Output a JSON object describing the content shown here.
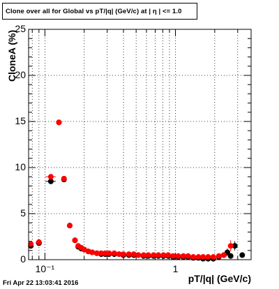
{
  "title": "Clone  over all for Global vs pT/|q| (GeV/c) at |  η | <= 1.0",
  "datestamp": "Fri Apr 22 13:03:41 2016",
  "chart_data": {
    "type": "scatter",
    "title": "Clone  over all for Global vs pT/|q| (GeV/c) at |  η | <= 1.0",
    "xlabel": "pT/|q| (GeV/c)",
    "ylabel": "CloneA (%)",
    "xscale": "log",
    "xlim": [
      0.075,
      3.8
    ],
    "ylim": [
      0,
      25
    ],
    "grid": true,
    "yticks": [
      {
        "value": 0,
        "label": "0"
      },
      {
        "value": 5,
        "label": "5"
      },
      {
        "value": 10,
        "label": "10"
      },
      {
        "value": 15,
        "label": "15"
      },
      {
        "value": 20,
        "label": "20"
      },
      {
        "value": 25,
        "label": "25"
      }
    ],
    "xticks": [
      {
        "value": 0.1,
        "label": "10⁻¹"
      },
      {
        "value": 1,
        "label": "1"
      }
    ],
    "series": [
      {
        "color": "#000000",
        "points": [
          [
            0.078,
            1.5,
            0.003,
            0.3
          ],
          [
            0.09,
            1.8,
            0.005,
            0.2
          ],
          [
            0.111,
            8.5,
            0.01,
            0.3
          ],
          [
            0.128,
            14.9,
            0.005,
            0.3
          ],
          [
            0.14,
            8.7,
            0.004,
            0.2
          ],
          [
            0.155,
            3.7,
            0.004,
            0.2
          ],
          [
            0.17,
            2.1,
            0.005,
            0.2
          ],
          [
            0.18,
            1.4,
            0.005,
            0.1
          ],
          [
            0.19,
            1.2,
            0.005,
            0.1
          ],
          [
            0.2,
            1.1,
            0.005,
            0.1
          ],
          [
            0.215,
            0.9,
            0.005,
            0.1
          ],
          [
            0.23,
            0.8,
            0.005,
            0.1
          ],
          [
            0.25,
            0.7,
            0.01,
            0.1
          ],
          [
            0.27,
            0.6,
            0.01,
            0.1
          ],
          [
            0.29,
            0.6,
            0.01,
            0.1
          ],
          [
            0.31,
            0.6,
            0.01,
            0.1
          ],
          [
            0.34,
            0.6,
            0.01,
            0.1
          ],
          [
            0.37,
            0.6,
            0.01,
            0.1
          ],
          [
            0.4,
            0.5,
            0.01,
            0.1
          ],
          [
            0.44,
            0.5,
            0.01,
            0.1
          ],
          [
            0.48,
            0.5,
            0.01,
            0.1
          ],
          [
            0.52,
            0.5,
            0.01,
            0.1
          ],
          [
            0.57,
            0.4,
            0.01,
            0.1
          ],
          [
            0.62,
            0.4,
            0.01,
            0.1
          ],
          [
            0.68,
            0.4,
            0.01,
            0.1
          ],
          [
            0.74,
            0.4,
            0.01,
            0.1
          ],
          [
            0.81,
            0.4,
            0.01,
            0.1
          ],
          [
            0.88,
            0.4,
            0.01,
            0.1
          ],
          [
            0.96,
            0.3,
            0.01,
            0.1
          ],
          [
            1.05,
            0.3,
            0.02,
            0.1
          ],
          [
            1.15,
            0.3,
            0.02,
            0.1
          ],
          [
            1.25,
            0.3,
            0.02,
            0.1
          ],
          [
            1.37,
            0.2,
            0.02,
            0.1
          ],
          [
            1.5,
            0.2,
            0.02,
            0.1
          ],
          [
            1.63,
            0.1,
            0.02,
            0.1
          ],
          [
            1.78,
            0.1,
            0.02,
            0.1
          ],
          [
            1.95,
            0.1,
            0.02,
            0.1
          ],
          [
            2.15,
            0.3,
            0.03,
            0.2
          ],
          [
            2.35,
            0.5,
            0.03,
            0.3
          ],
          [
            2.5,
            0.8,
            0.03,
            0.4
          ],
          [
            2.65,
            0.4,
            0.03,
            0.3
          ],
          [
            2.85,
            1.5,
            0.03,
            0.5
          ],
          [
            3.25,
            0.5,
            0.05,
            0.3
          ]
        ]
      },
      {
        "color": "#ff0000",
        "points": [
          [
            0.078,
            1.7,
            0.003,
            0.3
          ],
          [
            0.09,
            1.9,
            0.005,
            0.2
          ],
          [
            0.111,
            9.0,
            0.01,
            0.3
          ],
          [
            0.128,
            14.9,
            0.005,
            0.3
          ],
          [
            0.14,
            8.8,
            0.004,
            0.2
          ],
          [
            0.155,
            3.7,
            0.004,
            0.2
          ],
          [
            0.17,
            2.1,
            0.005,
            0.2
          ],
          [
            0.18,
            1.5,
            0.005,
            0.1
          ],
          [
            0.19,
            1.3,
            0.005,
            0.1
          ],
          [
            0.2,
            1.1,
            0.005,
            0.1
          ],
          [
            0.215,
            0.9,
            0.005,
            0.1
          ],
          [
            0.23,
            0.8,
            0.005,
            0.1
          ],
          [
            0.25,
            0.7,
            0.01,
            0.1
          ],
          [
            0.27,
            0.7,
            0.01,
            0.1
          ],
          [
            0.29,
            0.7,
            0.01,
            0.1
          ],
          [
            0.31,
            0.7,
            0.01,
            0.1
          ],
          [
            0.34,
            0.7,
            0.01,
            0.1
          ],
          [
            0.37,
            0.6,
            0.01,
            0.1
          ],
          [
            0.4,
            0.6,
            0.01,
            0.1
          ],
          [
            0.44,
            0.6,
            0.01,
            0.1
          ],
          [
            0.48,
            0.6,
            0.01,
            0.1
          ],
          [
            0.52,
            0.5,
            0.01,
            0.1
          ],
          [
            0.57,
            0.5,
            0.01,
            0.1
          ],
          [
            0.62,
            0.5,
            0.01,
            0.1
          ],
          [
            0.68,
            0.5,
            0.01,
            0.1
          ],
          [
            0.74,
            0.5,
            0.01,
            0.1
          ],
          [
            0.81,
            0.5,
            0.01,
            0.1
          ],
          [
            0.88,
            0.5,
            0.01,
            0.1
          ],
          [
            0.96,
            0.4,
            0.01,
            0.1
          ],
          [
            1.05,
            0.4,
            0.02,
            0.1
          ],
          [
            1.15,
            0.4,
            0.02,
            0.1
          ],
          [
            1.25,
            0.4,
            0.02,
            0.1
          ],
          [
            1.37,
            0.3,
            0.02,
            0.1
          ],
          [
            1.5,
            0.3,
            0.02,
            0.1
          ],
          [
            1.63,
            0.3,
            0.02,
            0.1
          ],
          [
            1.78,
            0.3,
            0.02,
            0.1
          ],
          [
            1.95,
            0.3,
            0.02,
            0.1
          ],
          [
            2.15,
            0.4,
            0.03,
            0.2
          ],
          [
            2.35,
            0.5,
            0.03,
            0.3
          ],
          [
            2.65,
            1.5,
            0.03,
            0.6
          ]
        ]
      }
    ]
  }
}
